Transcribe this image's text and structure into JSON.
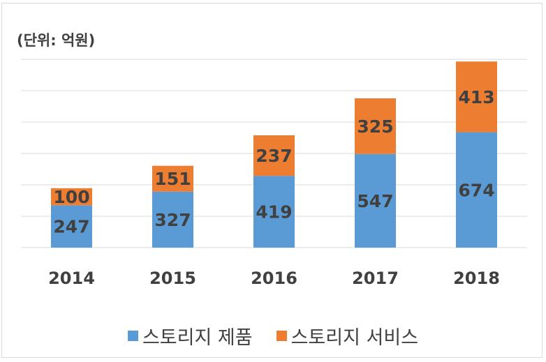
{
  "chart_data": {
    "type": "bar",
    "stacked": true,
    "unit_label": "(단위: 억원)",
    "categories": [
      "2014",
      "2015",
      "2016",
      "2017",
      "2018"
    ],
    "series": [
      {
        "name": "스토리지 제품",
        "color": "#5b9bd5",
        "values": [
          247,
          327,
          419,
          547,
          674
        ]
      },
      {
        "name": "스토리지 서비스",
        "color": "#ed7d31",
        "values": [
          100,
          151,
          237,
          325,
          413
        ]
      }
    ],
    "ylim": [
      0,
      1100
    ],
    "grid": true,
    "legend": "bottom"
  }
}
